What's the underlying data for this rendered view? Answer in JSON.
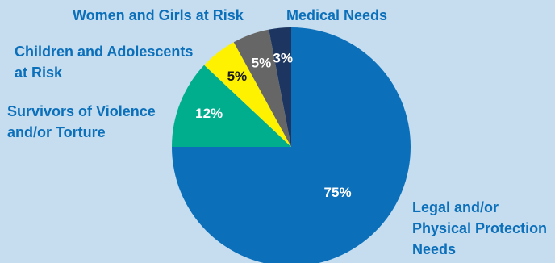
{
  "chart_data": {
    "type": "pie",
    "start_angle_deg": 0,
    "direction": "clockwise",
    "slices": [
      {
        "label_lines": [
          "Legal and/or",
          "Physical Protection",
          "Needs"
        ],
        "value": 75,
        "value_label": "75%",
        "color": "#0b6fba",
        "value_label_color": "#ffffff"
      },
      {
        "label_lines": [
          "Survivors of Violence",
          "and/or Torture"
        ],
        "value": 12,
        "value_label": "12%",
        "color": "#00ae8e",
        "value_label_color": "#ffffff"
      },
      {
        "label_lines": [
          "Children and Adolescents",
          "at Risk"
        ],
        "value": 5,
        "value_label": "5%",
        "color": "#fff200",
        "value_label_color": "#1a1a1a"
      },
      {
        "label_lines": [
          "Women and Girls at Risk"
        ],
        "value": 5,
        "value_label": "5%",
        "color": "#666666",
        "value_label_color": "#ffffff"
      },
      {
        "label_lines": [
          "Medical Needs"
        ],
        "value": 3,
        "value_label": "3%",
        "color": "#1c3661",
        "value_label_color": "#ffffff"
      }
    ],
    "category_label_color": "#0b6fba",
    "background": "#c5ddef"
  }
}
